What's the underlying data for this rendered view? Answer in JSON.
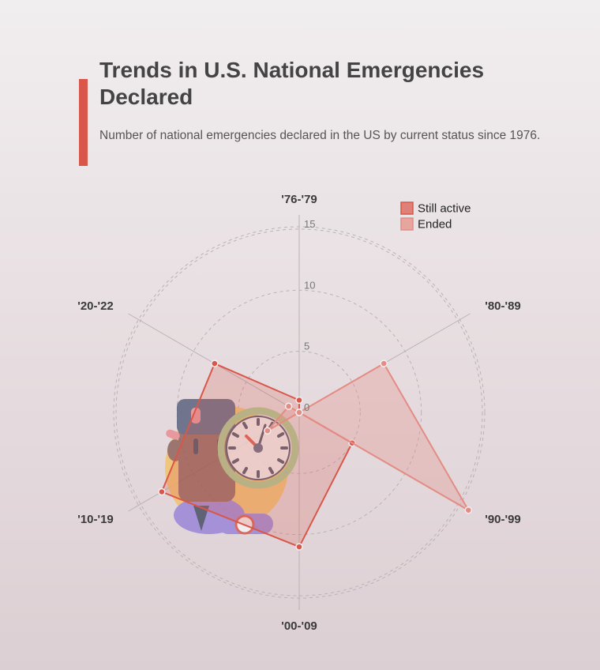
{
  "header": {
    "title": "Trends in U.S. National Emergencies Declared",
    "subtitle": "Number of national emergencies declared in the US by current status since 1976."
  },
  "chart_data": {
    "type": "radar",
    "categories": [
      "'76-'79",
      "'80-'89",
      "'90-'99",
      "'00-'09",
      "'10-'19",
      "'20-'22"
    ],
    "radial_ticks": [
      0,
      5,
      10,
      15
    ],
    "rmax": 15,
    "grid": true,
    "legend_position": "top-right",
    "series": [
      {
        "name": "Still active",
        "values": [
          1,
          0,
          5,
          11,
          13,
          8
        ],
        "color": "#d9574a"
      },
      {
        "name": "Ended",
        "values": [
          0,
          8,
          16,
          0,
          3,
          1
        ],
        "color": "#e48b83"
      }
    ]
  },
  "colors": {
    "accent": "#d9574a",
    "still_active": "#d9574a",
    "ended": "#e48b83",
    "grid": "#b9b3b5"
  },
  "illustration": {
    "icon": "businessman-clock-illustration"
  }
}
